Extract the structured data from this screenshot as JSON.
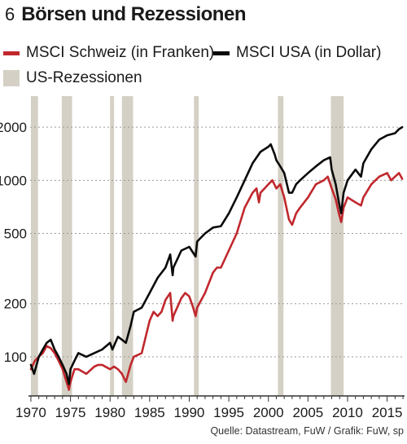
{
  "figure": {
    "number": "6",
    "title": "Börsen und Rezessionen",
    "source": "Quelle: Datastream, FuW / Grafik: FuW, sp"
  },
  "colors": {
    "schweiz": "#c0282d",
    "usa": "#0a0a0a",
    "recession": "#d5d0c5",
    "grid": "#9a9a9a",
    "axis": "#333333"
  },
  "legend": {
    "schweiz": "MSCI Schweiz (in Franken)",
    "usa": "MSCI USA (in Dollar)",
    "recession": "US-Rezessionen"
  },
  "chart_data": {
    "type": "line",
    "title": "Börsen und Rezessionen",
    "yscale": "log",
    "xlim": [
      1969.9,
      2017.2
    ],
    "ylim": [
      60,
      3000
    ],
    "yticks": [
      100,
      200,
      500,
      1000,
      2000
    ],
    "ytick_labels": [
      "100",
      "200",
      "500",
      "1000",
      "2000"
    ],
    "xticks": [
      1970,
      1975,
      1980,
      1985,
      1990,
      1995,
      2000,
      2005,
      2010,
      2015
    ],
    "xtick_labels": [
      "1970",
      "1975",
      "1980",
      "1985",
      "1990",
      "1995",
      "2000",
      "2005",
      "2010",
      "2015"
    ],
    "grid": "horizontal dashed",
    "recessions": [
      [
        1970.0,
        1970.9
      ],
      [
        1973.9,
        1975.2
      ],
      [
        1980.0,
        1980.5
      ],
      [
        1981.5,
        1982.9
      ],
      [
        1990.6,
        1991.2
      ],
      [
        2001.2,
        2001.9
      ],
      [
        2007.9,
        2009.5
      ]
    ],
    "series": [
      {
        "name": "MSCI Schweiz (in Franken)",
        "x": [
          1970,
          1970.5,
          1971,
          1971.5,
          1972,
          1972.5,
          1973,
          1973.5,
          1974,
          1974.5,
          1974.8,
          1975,
          1975.5,
          1976,
          1977,
          1978,
          1978.5,
          1979,
          1980,
          1980.5,
          1981,
          1981.5,
          1982,
          1982.6,
          1983,
          1984,
          1985,
          1985.5,
          1986,
          1986.5,
          1987,
          1987.6,
          1987.9,
          1988,
          1989,
          1989.5,
          1990,
          1990.5,
          1990.8,
          1991,
          1992,
          1993,
          1993.5,
          1994,
          1995,
          1996,
          1997,
          1998,
          1998.5,
          1998.8,
          1999,
          2000,
          2000.5,
          2001,
          2001.5,
          2002,
          2002.6,
          2003,
          2003.5,
          2004,
          2005,
          2006,
          2007,
          2007.5,
          2008,
          2008.5,
          2008.9,
          2009.2,
          2009.5,
          2010,
          2011,
          2011.7,
          2012,
          2013,
          2014,
          2015,
          2015.5,
          2016,
          2016.5,
          2016.9
        ],
        "values": [
          85,
          95,
          100,
          105,
          115,
          112,
          105,
          95,
          85,
          72,
          65,
          72,
          85,
          85,
          80,
          88,
          90,
          90,
          85,
          88,
          85,
          80,
          72,
          90,
          100,
          105,
          160,
          180,
          170,
          180,
          210,
          230,
          160,
          170,
          215,
          230,
          220,
          190,
          170,
          190,
          230,
          300,
          320,
          320,
          400,
          500,
          700,
          850,
          900,
          750,
          850,
          950,
          1000,
          900,
          950,
          800,
          600,
          560,
          650,
          700,
          800,
          950,
          1000,
          1050,
          900,
          780,
          650,
          580,
          700,
          800,
          750,
          720,
          800,
          950,
          1050,
          1100,
          1000,
          1050,
          1100,
          1020
        ]
      },
      {
        "name": "MSCI USA (in Dollar)",
        "x": [
          1970,
          1970.4,
          1971,
          1971.5,
          1972,
          1972.5,
          1973,
          1973.5,
          1974,
          1974.5,
          1974.8,
          1975,
          1975.5,
          1976,
          1977,
          1978,
          1979,
          1980,
          1980.3,
          1981,
          1981.5,
          1982,
          1982.6,
          1983,
          1984,
          1985,
          1986,
          1987,
          1987.6,
          1987.9,
          1988,
          1989,
          1990,
          1990.8,
          1991,
          1992,
          1993,
          1994,
          1995,
          1996,
          1997,
          1998,
          1999,
          1999.5,
          2000,
          2000.3,
          2000.8,
          2001,
          2001.5,
          2002,
          2002.6,
          2003,
          2003.5,
          2004,
          2005,
          2006,
          2007,
          2007.8,
          2008,
          2008.5,
          2008.9,
          2009.2,
          2009.5,
          2010,
          2011,
          2011.7,
          2012,
          2013,
          2014,
          2015,
          2016,
          2016.5,
          2016.9
        ],
        "values": [
          90,
          80,
          100,
          110,
          120,
          125,
          110,
          100,
          90,
          80,
          70,
          85,
          95,
          105,
          100,
          105,
          110,
          120,
          110,
          130,
          125,
          120,
          150,
          180,
          190,
          230,
          280,
          320,
          380,
          290,
          320,
          400,
          420,
          370,
          450,
          500,
          540,
          550,
          650,
          800,
          1000,
          1250,
          1450,
          1500,
          1550,
          1600,
          1400,
          1300,
          1200,
          1100,
          850,
          850,
          950,
          1000,
          1100,
          1200,
          1300,
          1350,
          1150,
          950,
          750,
          650,
          850,
          1000,
          1150,
          1050,
          1250,
          1500,
          1700,
          1800,
          1850,
          1950,
          2000
        ]
      }
    ]
  }
}
